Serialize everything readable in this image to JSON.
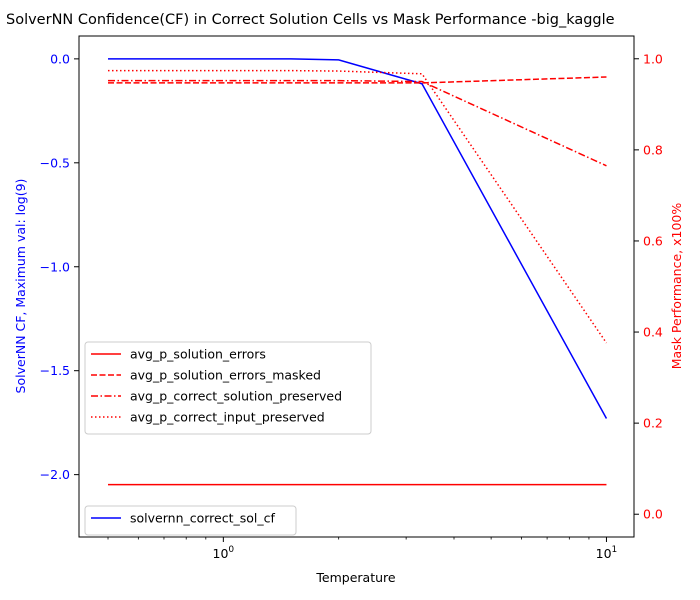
{
  "chart_data": {
    "type": "line",
    "title": "SolverNN Confidence(CF) in Correct Solution Cells vs Mask Performance -big_kaggle",
    "xlabel": "Temperature",
    "xscale": "log",
    "xlim": [
      0.42,
      11.8
    ],
    "x_ticks": [
      {
        "value": 1,
        "label": "10^0",
        "base": "10",
        "exp": "0"
      },
      {
        "value": 10,
        "label": "10^1",
        "base": "10",
        "exp": "1"
      }
    ],
    "left_axis": {
      "label": "SolverNN CF, Maximum val: log(9)",
      "color": "#0000ff",
      "ylim": [
        -2.3,
        0.11
      ],
      "ticks": [
        0.0,
        -0.5,
        -1.0,
        -1.5,
        -2.0
      ],
      "tick_labels": [
        "0.0",
        "−0.5",
        "−1.0",
        "−1.5",
        "−2.0"
      ]
    },
    "right_axis": {
      "label": "Mask Performance, x100%",
      "color": "#ff0000",
      "ylim": [
        -0.05,
        1.05
      ],
      "ticks": [
        0.0,
        0.2,
        0.4,
        0.6,
        0.8,
        1.0
      ],
      "tick_labels": [
        "0.0",
        "0.2",
        "0.4",
        "0.6",
        "0.8",
        "1.0"
      ]
    },
    "x": [
      0.5,
      1.0,
      1.5,
      2.0,
      3.3,
      10.0
    ],
    "series": [
      {
        "name": "solvernn_correct_sol_cf",
        "axis": "left",
        "color": "#0000ff",
        "style": "solid",
        "values": [
          0.0,
          0.0,
          0.0,
          -0.005,
          -0.12,
          -1.73
        ]
      },
      {
        "name": "avg_p_solution_errors",
        "axis": "right",
        "color": "#ff0000",
        "style": "solid",
        "values": [
          0.065,
          0.065,
          0.065,
          0.065,
          0.065,
          0.065
        ]
      },
      {
        "name": "avg_p_solution_errors_masked",
        "axis": "right",
        "color": "#ff0000",
        "style": "dashed",
        "values": [
          0.947,
          0.947,
          0.947,
          0.947,
          0.947,
          0.96
        ]
      },
      {
        "name": "avg_p_correct_solution_preserved",
        "axis": "right",
        "color": "#ff0000",
        "style": "dashdot",
        "values": [
          0.952,
          0.952,
          0.952,
          0.952,
          0.95,
          0.765
        ]
      },
      {
        "name": "avg_p_correct_input_preserved",
        "axis": "right",
        "color": "#ff0000",
        "style": "dotted",
        "values": [
          0.974,
          0.974,
          0.974,
          0.973,
          0.967,
          0.376
        ]
      }
    ],
    "legends": [
      {
        "placement": "center-left",
        "entries": [
          "avg_p_solution_errors",
          "avg_p_solution_errors_masked",
          "avg_p_correct_solution_preserved",
          "avg_p_correct_input_preserved"
        ]
      },
      {
        "placement": "lower-left",
        "entries": [
          "solvernn_correct_sol_cf"
        ]
      }
    ],
    "grid": false
  }
}
